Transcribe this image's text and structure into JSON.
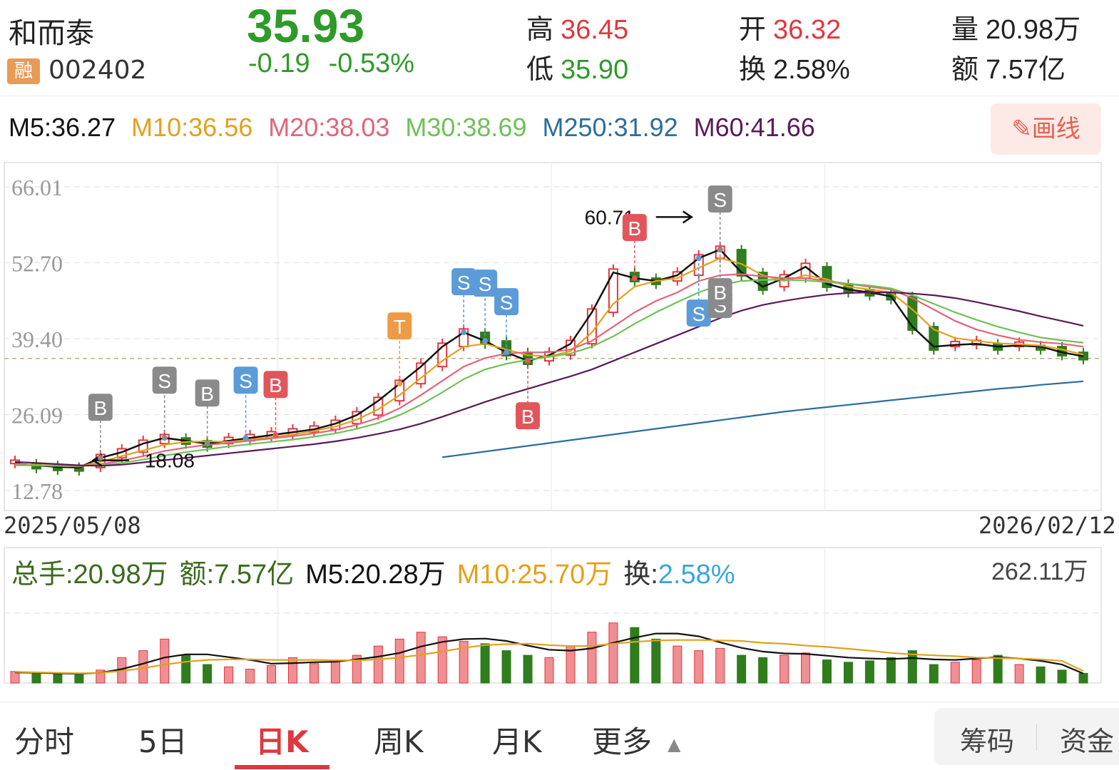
{
  "header": {
    "name": "和而泰",
    "margin_badge": "融",
    "code": "002402",
    "price": "35.93",
    "change": "-0.19",
    "change_pct": "-0.53%",
    "high_label": "高",
    "high": "36.45",
    "low_label": "低",
    "low": "35.90",
    "open_label": "开",
    "open": "36.32",
    "turnover_label": "换",
    "turnover": "2.58%",
    "volume_label": "量",
    "volume": "20.98万",
    "amount_label": "额",
    "amount": "7.57亿"
  },
  "ma_legend": [
    {
      "text": "M5:36.27",
      "color": "#111111"
    },
    {
      "text": "M10:36.56",
      "color": "#e3a11b"
    },
    {
      "text": "M20:38.03",
      "color": "#e2657a"
    },
    {
      "text": "M30:38.69",
      "color": "#6fc156"
    },
    {
      "text": "M250:31.92",
      "color": "#2a6e9e"
    },
    {
      "text": "M60:41.66",
      "color": "#5a1a5a"
    }
  ],
  "draw_button": "画线",
  "axis": {
    "y_ticks": [
      "66.01",
      "52.70",
      "39.40",
      "26.09",
      "12.78"
    ],
    "date_start": "2025/05/08",
    "date_end": "2026/02/12",
    "high_annotation": "60.71",
    "low_annotation": "18.08"
  },
  "signals": [
    {
      "label": "B",
      "color": "#8a8a8a"
    },
    {
      "label": "S",
      "color": "#8a8a8a"
    },
    {
      "label": "B",
      "color": "#8a8a8a"
    },
    {
      "label": "S",
      "color": "#5b9bd8"
    },
    {
      "label": "B",
      "color": "#e0565b"
    },
    {
      "label": "T",
      "color": "#ef9a44"
    },
    {
      "label": "S",
      "color": "#5b9bd8"
    },
    {
      "label": "S",
      "color": "#5b9bd8"
    },
    {
      "label": "S",
      "color": "#5b9bd8"
    },
    {
      "label": "B",
      "color": "#e0565b"
    },
    {
      "label": "B",
      "color": "#e0565b"
    },
    {
      "label": "S",
      "color": "#5b9bd8"
    },
    {
      "label": "S",
      "color": "#8a8a8a"
    },
    {
      "label": "S",
      "color": "#8a8a8a"
    },
    {
      "label": "B",
      "color": "#8a8a8a"
    }
  ],
  "volume_legend": {
    "total": "总手:20.98万",
    "amount": "额:7.57亿",
    "m5": "M5:20.28万",
    "m10": "M10:25.70万",
    "turnover_label": "换:",
    "turnover_value": "2.58%",
    "max": "262.11万"
  },
  "tabs": [
    "分时",
    "5日",
    "日K",
    "周K",
    "月K",
    "更多"
  ],
  "right_buttons": [
    "筹码",
    "资金"
  ],
  "chart_data": [
    {
      "type": "candlestick",
      "title": "",
      "x_range": [
        "2025/05/08",
        "2026/02/12"
      ],
      "ylim": [
        12.78,
        66.01
      ],
      "grid": true,
      "current_price": 35.93,
      "annotations": [
        {
          "text": "60.71",
          "value": 60.71
        },
        {
          "text": "18.08",
          "value": 18.08
        }
      ],
      "series": [
        {
          "name": "M5",
          "values": [
            17.5,
            17.2,
            16.9,
            16.8,
            18.5,
            19.5,
            21.0,
            22.0,
            21.5,
            21.0,
            21.5,
            22.0,
            22.5,
            23.0,
            23.5,
            24.5,
            26.0,
            28.5,
            31.5,
            34.5,
            38.0,
            40.5,
            39.0,
            37.0,
            35.5,
            36.5,
            38.5,
            44.0,
            51.0,
            50.0,
            49.5,
            50.5,
            53.5,
            55.0,
            51.0,
            48.5,
            50.0,
            52.0,
            49.0,
            48.0,
            47.5,
            46.8,
            41.5,
            38.0,
            38.3,
            38.5,
            38.0,
            38.2,
            38.0,
            37.0,
            36.3
          ]
        },
        {
          "name": "M10",
          "values": [
            17.4,
            17.3,
            17.1,
            17.0,
            17.8,
            18.8,
            19.8,
            20.8,
            21.3,
            21.4,
            21.3,
            21.7,
            22.1,
            22.6,
            23.2,
            24.0,
            25.2,
            27.0,
            29.5,
            32.5,
            35.5,
            38.0,
            38.5,
            37.5,
            36.5,
            36.3,
            37.2,
            40.5,
            45.5,
            48.5,
            49.5,
            50.0,
            51.8,
            53.5,
            52.5,
            50.5,
            49.5,
            50.5,
            49.8,
            48.5,
            48.0,
            47.5,
            44.5,
            41.0,
            39.5,
            39.0,
            38.6,
            38.4,
            38.2,
            37.5,
            36.6
          ]
        },
        {
          "name": "M20",
          "values": [
            17.3,
            17.2,
            17.1,
            17.0,
            17.4,
            18.0,
            18.8,
            19.7,
            20.3,
            20.8,
            21.1,
            21.5,
            21.9,
            22.3,
            22.8,
            23.4,
            24.3,
            25.5,
            27.2,
            29.5,
            32.0,
            34.5,
            36.0,
            36.8,
            37.0,
            37.0,
            37.5,
            39.0,
            41.5,
            44.0,
            46.0,
            47.5,
            49.5,
            50.5,
            50.7,
            50.3,
            50.0,
            50.0,
            49.5,
            49.0,
            48.5,
            48.0,
            46.5,
            44.5,
            42.5,
            41.0,
            40.0,
            39.2,
            38.8,
            38.5,
            38.0
          ]
        },
        {
          "name": "M30",
          "values": [
            17.2,
            17.2,
            17.1,
            17.1,
            17.2,
            17.6,
            18.2,
            18.9,
            19.5,
            20.0,
            20.5,
            20.9,
            21.3,
            21.7,
            22.2,
            22.8,
            23.6,
            24.6,
            26.0,
            27.8,
            30.0,
            32.3,
            34.0,
            35.0,
            35.7,
            36.2,
            36.8,
            38.0,
            39.8,
            42.0,
            44.0,
            45.8,
            47.5,
            48.8,
            49.5,
            49.7,
            49.7,
            49.6,
            49.3,
            49.0,
            48.7,
            48.2,
            47.0,
            45.5,
            44.0,
            42.7,
            41.5,
            40.5,
            39.6,
            39.1,
            38.7
          ]
        },
        {
          "name": "M60",
          "values": [
            17.8,
            17.6,
            17.4,
            17.2,
            17.1,
            17.3,
            17.7,
            18.1,
            18.5,
            18.9,
            19.3,
            19.7,
            20.1,
            20.5,
            20.9,
            21.4,
            22.0,
            22.7,
            23.5,
            24.5,
            25.7,
            27.0,
            28.3,
            29.5,
            30.6,
            31.7,
            32.8,
            34.0,
            35.5,
            37.0,
            38.5,
            40.0,
            41.5,
            43.0,
            44.3,
            45.3,
            46.0,
            46.6,
            47.1,
            47.4,
            47.5,
            47.5,
            47.3,
            47.0,
            46.5,
            45.8,
            45.0,
            44.2,
            43.3,
            42.5,
            41.66
          ]
        },
        {
          "name": "M250",
          "values": [
            null,
            null,
            null,
            null,
            null,
            null,
            null,
            null,
            null,
            null,
            null,
            null,
            null,
            null,
            null,
            null,
            null,
            null,
            null,
            null,
            18.6,
            19.1,
            19.6,
            20.1,
            20.6,
            21.1,
            21.6,
            22.1,
            22.6,
            23.1,
            23.6,
            24.1,
            24.6,
            25.1,
            25.6,
            26.1,
            26.6,
            27.0,
            27.4,
            27.8,
            28.2,
            28.6,
            29.0,
            29.4,
            29.8,
            30.2,
            30.6,
            30.9,
            31.3,
            31.6,
            31.92
          ]
        }
      ]
    },
    {
      "type": "bar",
      "title": "",
      "ylim": [
        0,
        262.11
      ],
      "unit": "万",
      "series": [
        {
          "name": "volume",
          "values": [
            25,
            22,
            20,
            18,
            28,
            55,
            70,
            95,
            60,
            40,
            35,
            30,
            38,
            55,
            42,
            50,
            60,
            80,
            95,
            110,
            100,
            90,
            85,
            70,
            60,
            55,
            80,
            110,
            130,
            120,
            95,
            80,
            70,
            75,
            60,
            55,
            60,
            65,
            50,
            45,
            48,
            55,
            70,
            40,
            45,
            50,
            60,
            40,
            35,
            28,
            20.98
          ]
        },
        {
          "name": "M5",
          "values": [
            23,
            22,
            21,
            20,
            22,
            30,
            42,
            55,
            62,
            62,
            56,
            50,
            42,
            43,
            45,
            46,
            51,
            57,
            65,
            79,
            89,
            95,
            96,
            91,
            81,
            72,
            70,
            75,
            87,
            98,
            107,
            107,
            101,
            88,
            76,
            68,
            64,
            63,
            59,
            55,
            53,
            52,
            54,
            51,
            50,
            53,
            56,
            53,
            48,
            40,
            20.28
          ]
        },
        {
          "name": "M10",
          "values": [
            24,
            23,
            22,
            21,
            22,
            26,
            32,
            40,
            46,
            50,
            51,
            51,
            50,
            50,
            50,
            49,
            49,
            51,
            55,
            61,
            68,
            76,
            82,
            84,
            85,
            82,
            80,
            80,
            85,
            89,
            92,
            93,
            93,
            92,
            91,
            87,
            85,
            81,
            78,
            74,
            70,
            65,
            62,
            60,
            58,
            55,
            54,
            53,
            51,
            48,
            25.7
          ]
        }
      ]
    }
  ]
}
